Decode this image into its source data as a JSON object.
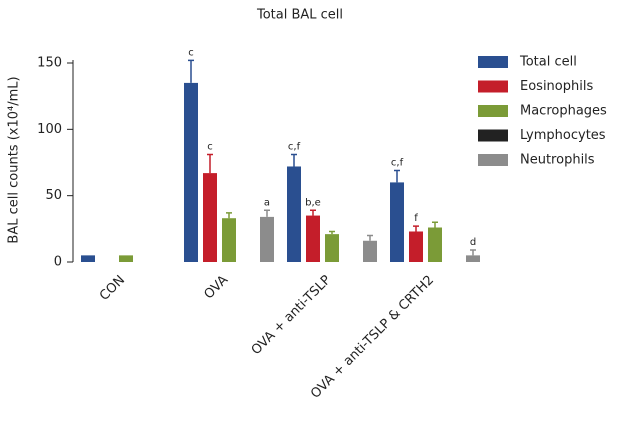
{
  "chart_data": {
    "type": "bar",
    "title": "Total BAL cell",
    "y_label": "BAL cell counts (x10⁴/mL)",
    "categories": [
      "CON",
      "OVA",
      "OVA + anti-TSLP",
      "OVA + anti-TSLP & CRTH2"
    ],
    "ylim": [
      0,
      150
    ],
    "yticks": [
      0,
      50,
      100,
      150
    ],
    "series": [
      {
        "name": "Total cell",
        "color": "#2a4f90",
        "values": [
          5,
          135,
          72,
          60
        ],
        "errors": [
          null,
          17,
          9,
          9
        ],
        "labels": [
          null,
          "c",
          "c,f",
          "c,f"
        ]
      },
      {
        "name": "Eosinophils",
        "color": "#c41e2a",
        "values": [
          0,
          67,
          35,
          23
        ],
        "errors": [
          null,
          14,
          4,
          4
        ],
        "labels": [
          null,
          "c",
          "b,e",
          "f"
        ]
      },
      {
        "name": "Macrophages",
        "color": "#7b9b37",
        "values": [
          5,
          33,
          21,
          26
        ],
        "errors": [
          null,
          4,
          2,
          4
        ],
        "labels": [
          null,
          null,
          null,
          null
        ]
      },
      {
        "name": "Lymphocytes",
        "color": "#222222",
        "values": [
          0,
          0,
          0,
          0
        ],
        "errors": [
          null,
          null,
          null,
          null
        ],
        "labels": [
          null,
          null,
          null,
          null
        ]
      },
      {
        "name": "Neutrophils",
        "color": "#8c8c8c",
        "values": [
          0,
          34,
          16,
          5
        ],
        "errors": [
          null,
          5,
          4,
          4
        ],
        "labels": [
          null,
          "a",
          null,
          "d"
        ]
      }
    ]
  }
}
